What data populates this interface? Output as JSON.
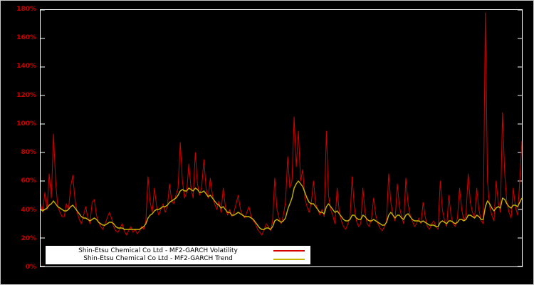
{
  "chart": {
    "background_color": "#000000",
    "plot_border_color": "#ffffff",
    "axis_label_color": "#cc0000",
    "legend_background": "#ffffff"
  },
  "chart_data": {
    "type": "line",
    "title": "",
    "xlabel": "",
    "ylabel": "",
    "x_axis_labels_visible": false,
    "grid": false,
    "legend_position": "bottom-left",
    "ylim": [
      0,
      180
    ],
    "yticks": [
      {
        "value": 0,
        "label": "0%"
      },
      {
        "value": 20,
        "label": "20%"
      },
      {
        "value": 40,
        "label": "40%"
      },
      {
        "value": 60,
        "label": "60%"
      },
      {
        "value": 80,
        "label": "80%"
      },
      {
        "value": 100,
        "label": "100%"
      },
      {
        "value": 120,
        "label": "120%"
      },
      {
        "value": 140,
        "label": "140%"
      },
      {
        "value": 160,
        "label": "160%"
      },
      {
        "value": 180,
        "label": "180%"
      }
    ],
    "series": [
      {
        "name": "Shin-Etsu Chemical Co Ltd - MF2-GARCH Volatility",
        "color": "#d40000",
        "unit": "%",
        "values": [
          44,
          38,
          52,
          40,
          65,
          48,
          93,
          60,
          42,
          38,
          35,
          35,
          44,
          40,
          56,
          64,
          47,
          38,
          33,
          30,
          36,
          42,
          34,
          30,
          45,
          47,
          36,
          31,
          28,
          26,
          30,
          34,
          38,
          34,
          28,
          25,
          24,
          27,
          30,
          25,
          22,
          25,
          28,
          24,
          26,
          23,
          25,
          28,
          26,
          32,
          63,
          45,
          38,
          55,
          42,
          36,
          40,
          44,
          38,
          42,
          58,
          46,
          44,
          50,
          55,
          87,
          60,
          48,
          52,
          72,
          55,
          48,
          80,
          58,
          50,
          56,
          75,
          55,
          48,
          62,
          50,
          44,
          40,
          46,
          38,
          55,
          42,
          36,
          40,
          35,
          38,
          44,
          50,
          40,
          36,
          34,
          38,
          42,
          35,
          32,
          30,
          26,
          24,
          22,
          26,
          30,
          28,
          25,
          32,
          62,
          40,
          34,
          30,
          36,
          45,
          77,
          55,
          60,
          105,
          70,
          95,
          60,
          68,
          48,
          42,
          38,
          45,
          60,
          44,
          40,
          36,
          40,
          35,
          95,
          50,
          40,
          36,
          30,
          55,
          38,
          32,
          28,
          26,
          30,
          34,
          63,
          42,
          32,
          28,
          30,
          55,
          38,
          30,
          28,
          34,
          48,
          36,
          30,
          27,
          25,
          28,
          32,
          65,
          45,
          36,
          32,
          58,
          42,
          35,
          30,
          62,
          44,
          36,
          32,
          28,
          30,
          34,
          30,
          45,
          35,
          28,
          26,
          30,
          32,
          28,
          26,
          60,
          40,
          32,
          28,
          50,
          36,
          30,
          28,
          34,
          55,
          40,
          32,
          36,
          65,
          45,
          38,
          34,
          55,
          40,
          32,
          30,
          178,
          60,
          42,
          36,
          32,
          60,
          45,
          38,
          108,
          65,
          45,
          38,
          34,
          55,
          42,
          36,
          60,
          88
        ]
      },
      {
        "name": "Shin-Etsu Chemical Co Ltd - MF2-GARCH Trend",
        "color": "#c8b400",
        "unit": "%",
        "values": [
          40,
          39,
          40,
          41,
          43,
          44,
          46,
          44,
          42,
          41,
          40,
          39,
          39,
          40,
          42,
          43,
          41,
          39,
          37,
          35,
          34,
          34,
          33,
          32,
          33,
          34,
          33,
          31,
          30,
          29,
          29,
          30,
          31,
          31,
          30,
          28,
          27,
          27,
          27,
          26,
          26,
          26,
          26,
          26,
          26,
          26,
          26,
          27,
          28,
          30,
          34,
          36,
          37,
          39,
          40,
          40,
          41,
          42,
          42,
          43,
          45,
          46,
          47,
          48,
          50,
          53,
          54,
          53,
          53,
          55,
          54,
          53,
          55,
          54,
          52,
          52,
          53,
          51,
          49,
          50,
          48,
          46,
          44,
          43,
          41,
          42,
          40,
          38,
          38,
          36,
          36,
          37,
          38,
          37,
          36,
          35,
          35,
          35,
          34,
          33,
          31,
          29,
          27,
          26,
          26,
          27,
          27,
          26,
          28,
          32,
          33,
          32,
          31,
          32,
          34,
          40,
          44,
          48,
          55,
          58,
          60,
          58,
          56,
          52,
          48,
          45,
          44,
          44,
          42,
          40,
          38,
          38,
          37,
          42,
          44,
          42,
          40,
          38,
          39,
          37,
          35,
          33,
          32,
          32,
          33,
          36,
          36,
          34,
          33,
          33,
          36,
          35,
          33,
          32,
          32,
          33,
          32,
          31,
          30,
          29,
          29,
          31,
          36,
          38,
          36,
          34,
          36,
          36,
          34,
          33,
          36,
          37,
          35,
          33,
          32,
          32,
          32,
          31,
          32,
          31,
          30,
          29,
          29,
          29,
          28,
          28,
          31,
          32,
          31,
          30,
          32,
          32,
          31,
          30,
          31,
          33,
          33,
          32,
          33,
          36,
          36,
          35,
          34,
          36,
          35,
          33,
          33,
          42,
          46,
          44,
          41,
          39,
          41,
          42,
          41,
          48,
          47,
          44,
          42,
          41,
          43,
          43,
          42,
          45,
          48
        ]
      }
    ]
  },
  "legend": {
    "rows": [
      {
        "key": "volatility"
      },
      {
        "key": "trend"
      }
    ]
  }
}
